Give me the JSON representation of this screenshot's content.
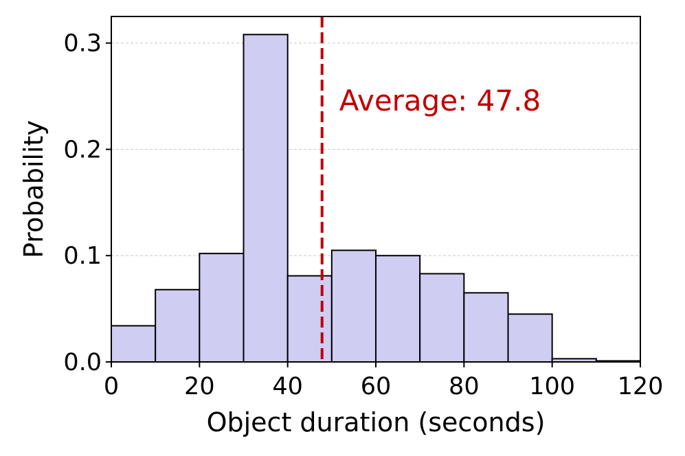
{
  "chart_data": {
    "type": "bar",
    "subtype": "histogram",
    "bins": [
      {
        "x0": 0,
        "x1": 10,
        "value": 0.034
      },
      {
        "x0": 10,
        "x1": 20,
        "value": 0.068
      },
      {
        "x0": 20,
        "x1": 30,
        "value": 0.102
      },
      {
        "x0": 30,
        "x1": 40,
        "value": 0.308
      },
      {
        "x0": 40,
        "x1": 50,
        "value": 0.081
      },
      {
        "x0": 50,
        "x1": 60,
        "value": 0.105
      },
      {
        "x0": 60,
        "x1": 70,
        "value": 0.1
      },
      {
        "x0": 70,
        "x1": 80,
        "value": 0.083
      },
      {
        "x0": 80,
        "x1": 90,
        "value": 0.065
      },
      {
        "x0": 90,
        "x1": 100,
        "value": 0.045
      },
      {
        "x0": 100,
        "x1": 110,
        "value": 0.003
      },
      {
        "x0": 110,
        "x1": 120,
        "value": 0.001
      }
    ],
    "xlabel": "Object duration (seconds)",
    "ylabel": "Probability",
    "xlim": [
      0,
      120
    ],
    "ylim": [
      0,
      0.325
    ],
    "xticks": [
      0,
      20,
      40,
      60,
      80,
      100,
      120
    ],
    "yticks": [
      0.0,
      0.1,
      0.2,
      0.3
    ],
    "xtick_labels": [
      "0",
      "20",
      "40",
      "60",
      "80",
      "100",
      "120"
    ],
    "ytick_labels": [
      "0.0",
      "0.1",
      "0.2",
      "0.3"
    ],
    "grid": "horizontal dashed",
    "average_line": {
      "x": 47.8,
      "label": "Average: 47.8",
      "color": "#c00000",
      "style": "dashed"
    },
    "bar_color": "#d0cdf2",
    "bar_edge_color": "#000000"
  }
}
